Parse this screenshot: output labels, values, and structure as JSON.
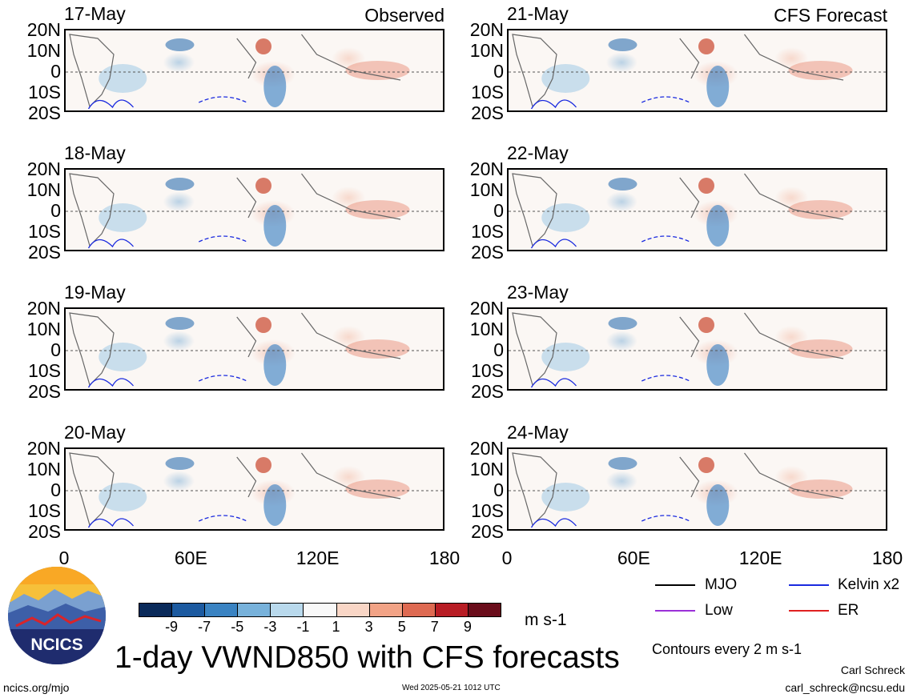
{
  "panels": [
    {
      "date": "17-May",
      "tag": "Observed"
    },
    {
      "date": "18-May",
      "tag": ""
    },
    {
      "date": "19-May",
      "tag": ""
    },
    {
      "date": "20-May",
      "tag": ""
    },
    {
      "date": "21-May",
      "tag": "CFS Forecast"
    },
    {
      "date": "22-May",
      "tag": ""
    },
    {
      "date": "23-May",
      "tag": ""
    },
    {
      "date": "24-May",
      "tag": ""
    }
  ],
  "lat_labels": [
    "20N",
    "10N",
    "0",
    "10S",
    "20S"
  ],
  "lon_labels": [
    "0",
    "60E",
    "120E",
    "180"
  ],
  "colorbar": {
    "ticks": [
      "-9",
      "-7",
      "-5",
      "-3",
      "-1",
      "1",
      "3",
      "5",
      "7",
      "9"
    ],
    "colors": [
      "#0a2a5a",
      "#1c5aa0",
      "#3a83c2",
      "#78b2db",
      "#b9d9ec",
      "#f8f8f8",
      "#f9d6c6",
      "#f2a386",
      "#de6a52",
      "#b81d25",
      "#6a0d1b"
    ],
    "unit": "m s-1"
  },
  "legend": {
    "items": [
      {
        "label": "MJO",
        "color": "#000000"
      },
      {
        "label": "Kelvin x2",
        "color": "#1a2adf"
      },
      {
        "label": "Low",
        "color": "#9b30d8"
      },
      {
        "label": "ER",
        "color": "#e02020"
      }
    ],
    "contours_note": "Contours every 2 m s-1"
  },
  "title": "1-day VWND850 with CFS forecasts",
  "author": "Carl Schreck",
  "email": "carl_schreck@ncsu.edu",
  "site": "ncics.org/mjo",
  "timestamp": "Wed 2025-05-21 1012 UTC",
  "logo_text": "NCICS",
  "chart_data": {
    "type": "heatmap",
    "variable": "VWND850",
    "panels": [
      "17-May",
      "18-May",
      "19-May",
      "20-May",
      "21-May",
      "22-May",
      "23-May",
      "24-May"
    ],
    "x_ticks": [
      "0",
      "60E",
      "120E",
      "180"
    ],
    "xlim": [
      0,
      180
    ],
    "y_ticks": [
      "20N",
      "10N",
      "0",
      "10S",
      "20S"
    ],
    "ylim": [
      -20,
      20
    ],
    "color_levels": [
      -9,
      -7,
      -5,
      -3,
      -1,
      1,
      3,
      5,
      7,
      9
    ],
    "unit": "m s-1"
  }
}
